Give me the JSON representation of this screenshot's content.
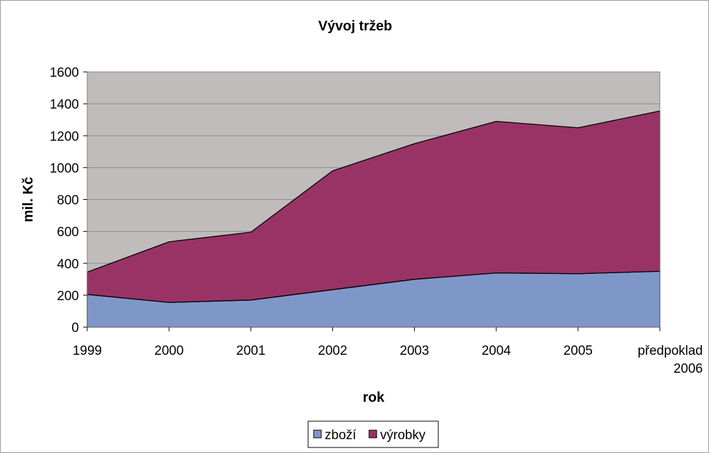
{
  "chart_data": {
    "type": "area",
    "stacked": true,
    "title": "Vývoj tržeb",
    "xlabel": "rok",
    "ylabel": "mil. Kč",
    "ylim": [
      0,
      1600
    ],
    "yticks": [
      0,
      200,
      400,
      600,
      800,
      1000,
      1200,
      1400,
      1600
    ],
    "categories": [
      [
        "1999"
      ],
      [
        "2000"
      ],
      [
        "2001"
      ],
      [
        "2002"
      ],
      [
        "2003"
      ],
      [
        "2004"
      ],
      [
        "2005"
      ],
      [
        "předpoklad",
        "2006"
      ]
    ],
    "series": [
      {
        "name": "zboží",
        "color": "#7f97c8",
        "values": [
          205,
          155,
          170,
          235,
          300,
          340,
          335,
          350
        ]
      },
      {
        "name": "výrobky",
        "color": "#993366",
        "values": [
          140,
          380,
          425,
          745,
          850,
          950,
          915,
          1005
        ]
      }
    ],
    "plot_background": "#c0bcbc",
    "gridlines": true,
    "legend_position": "bottom"
  }
}
